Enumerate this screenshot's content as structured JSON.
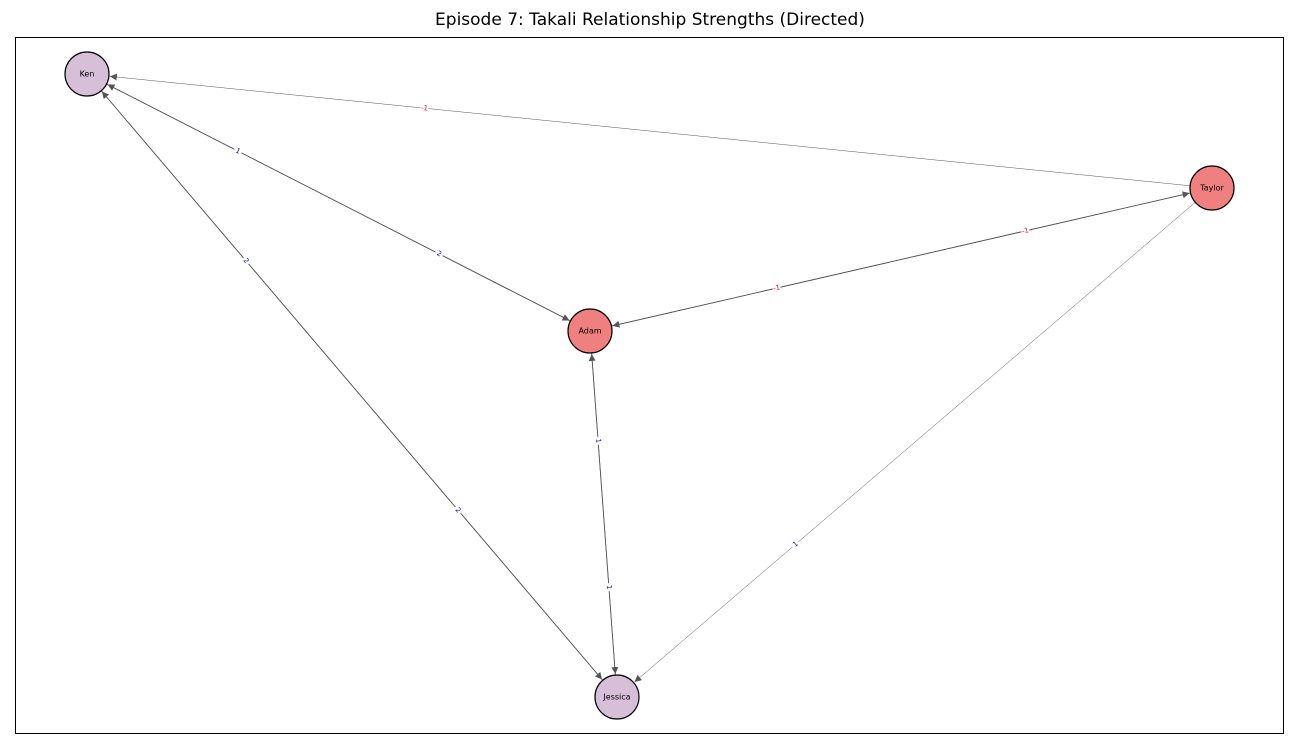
{
  "title": "Episode 7: Takali Relationship Strengths (Directed)",
  "colors": {
    "node_red": "#f08080",
    "node_purple": "#d8bfd8",
    "node_stroke": "#000000",
    "edge": "#555555",
    "label_positive": "#0000cc",
    "label_negative": "#ff0000"
  },
  "nodes": [
    {
      "id": "ken",
      "label": "Ken",
      "color": "node_purple"
    },
    {
      "id": "taylor",
      "label": "Taylor",
      "color": "node_red"
    },
    {
      "id": "adam",
      "label": "Adam",
      "color": "node_red"
    },
    {
      "id": "jessica",
      "label": "Jessica",
      "color": "node_purple"
    }
  ],
  "edges": [
    {
      "id": "taylor-ken",
      "source": "taylor",
      "target": "ken",
      "label": "-1"
    },
    {
      "id": "adam-ken",
      "source": "adam",
      "target": "ken",
      "label": "1"
    },
    {
      "id": "ken-adam",
      "source": "ken",
      "target": "adam",
      "label": "2"
    },
    {
      "id": "jessica-ken",
      "source": "jessica",
      "target": "ken",
      "label": "2"
    },
    {
      "id": "ken-jessica",
      "source": "ken",
      "target": "jessica",
      "label": "2"
    },
    {
      "id": "adam-taylor",
      "source": "adam",
      "target": "taylor",
      "label": "-1"
    },
    {
      "id": "taylor-adam",
      "source": "taylor",
      "target": "adam",
      "label": "-1"
    },
    {
      "id": "jessica-adam",
      "source": "jessica",
      "target": "adam",
      "label": "1"
    },
    {
      "id": "adam-jessica",
      "source": "adam",
      "target": "jessica",
      "label": "1"
    },
    {
      "id": "taylor-jessica",
      "source": "taylor",
      "target": "jessica",
      "label": "1"
    }
  ]
}
